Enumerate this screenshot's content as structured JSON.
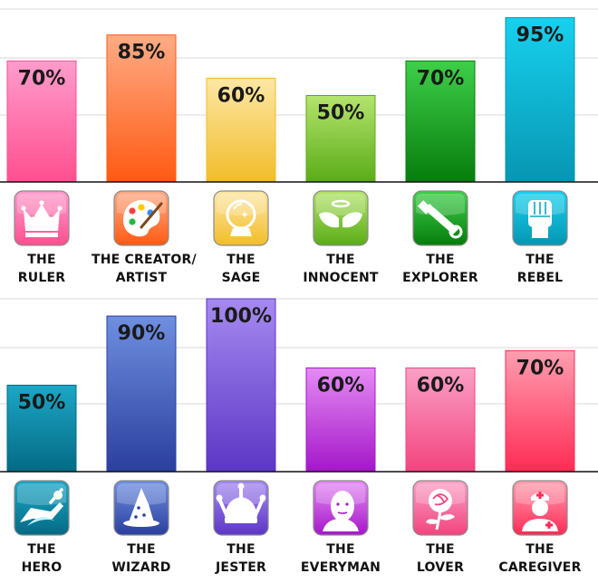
{
  "chart_data": [
    {
      "type": "bar",
      "categories": [
        "THE RULER",
        "THE CREATOR/ ARTIST",
        "THE SAGE",
        "THE INNOCENT",
        "THE EXPLORER",
        "THE REBEL"
      ],
      "category_lines": [
        [
          "THE",
          "RULER"
        ],
        [
          "THE CREATOR/",
          "ARTIST"
        ],
        [
          "THE",
          "SAGE"
        ],
        [
          "THE",
          "INNOCENT"
        ],
        [
          "THE",
          "EXPLORER"
        ],
        [
          "THE",
          "REBEL"
        ]
      ],
      "values": [
        70,
        85,
        60,
        50,
        70,
        95
      ],
      "data_labels": [
        "70%",
        "85%",
        "60%",
        "50%",
        "70%",
        "95%"
      ],
      "icons": [
        "crown-icon",
        "palette-icon",
        "crystal-ball-icon",
        "angel-wings-icon",
        "telescope-icon",
        "fist-icon"
      ],
      "colors": [
        [
          "#ff9ccc",
          "#ff4f8f"
        ],
        [
          "#ffab86",
          "#ff5a12"
        ],
        [
          "#fde7a4",
          "#f2bd2a"
        ],
        [
          "#b5e46d",
          "#5aac18"
        ],
        [
          "#3fcf4a",
          "#067d0c"
        ],
        [
          "#17d1ee",
          "#0796b3"
        ]
      ],
      "ylim": [
        0,
        100
      ],
      "grid": true
    },
    {
      "type": "bar",
      "categories": [
        "THE HERO",
        "THE WIZARD",
        "THE JESTER",
        "THE EVERYMAN",
        "THE LOVER",
        "THE CAREGIVER"
      ],
      "category_lines": [
        [
          "THE",
          "HERO"
        ],
        [
          "THE",
          "WIZARD"
        ],
        [
          "THE",
          "JESTER"
        ],
        [
          "THE",
          "EVERYMAN"
        ],
        [
          "THE",
          "LOVER"
        ],
        [
          "THE",
          "CAREGIVER"
        ]
      ],
      "values": [
        50,
        90,
        100,
        60,
        60,
        70
      ],
      "data_labels": [
        "50%",
        "90%",
        "100%",
        "60%",
        "60%",
        "70%"
      ],
      "icons": [
        "flying-hero-icon",
        "wizard-hat-icon",
        "jester-hat-icon",
        "everyman-face-icon",
        "rose-icon",
        "nurse-icon"
      ],
      "colors": [
        [
          "#1ba7c6",
          "#046a85"
        ],
        [
          "#6f8fe0",
          "#2b3f9e"
        ],
        [
          "#a58af0",
          "#5c36c5"
        ],
        [
          "#e58af4",
          "#a417c9"
        ],
        [
          "#fba0c6",
          "#f2447e"
        ],
        [
          "#ff9eb0",
          "#ff2b55"
        ]
      ],
      "ylim": [
        0,
        100
      ],
      "grid": true
    }
  ]
}
